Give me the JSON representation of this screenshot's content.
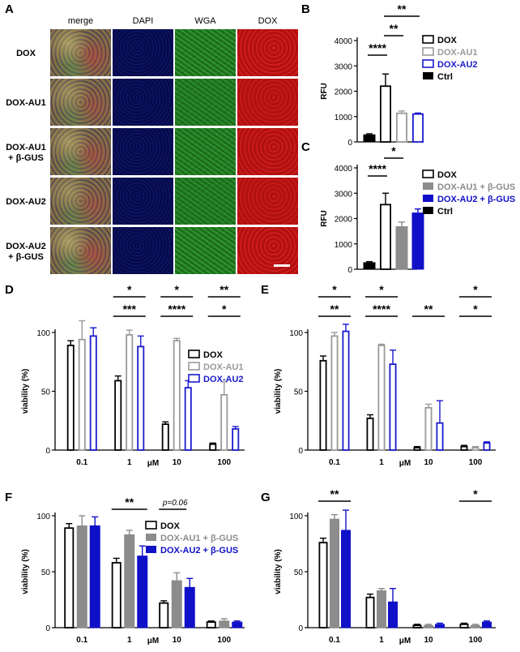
{
  "panel_letters": [
    "A",
    "B",
    "C",
    "D",
    "E",
    "F",
    "G"
  ],
  "panelA": {
    "columns": [
      "merge",
      "DAPI",
      "WGA",
      "DOX"
    ],
    "rows": [
      "DOX",
      "DOX-AU1",
      "DOX-AU1\n+ β-GUS",
      "DOX-AU2",
      "DOX-AU2\n+ β-GUS"
    ],
    "channel_colors": {
      "merge": "#7a6a40",
      "DAPI": "#0a0e5e",
      "WGA": "#1e6a1e",
      "DOX": "#b01010"
    },
    "row_intensity": [
      1.0,
      0.75,
      0.9,
      0.75,
      1.0
    ]
  },
  "chart_data": [
    {
      "panel": "B",
      "type": "bar",
      "ylabel": "RFU",
      "ylim": [
        0,
        4000
      ],
      "yticks": [
        0,
        1000,
        2000,
        3000,
        4000
      ],
      "series": [
        {
          "name": "Ctrl",
          "value": 280,
          "err": 40,
          "style": "solid",
          "color": "#000000"
        },
        {
          "name": "DOX",
          "value": 2200,
          "err": 480,
          "style": "open",
          "color": "#000000"
        },
        {
          "name": "DOX-AU1",
          "value": 1130,
          "err": 90,
          "style": "open",
          "color": "#9a9a9a"
        },
        {
          "name": "DOX-AU2",
          "value": 1100,
          "err": 40,
          "style": "open",
          "color": "#1a1acc"
        }
      ],
      "legend": [
        "DOX",
        "DOX-AU1",
        "DOX-AU2",
        "Ctrl"
      ],
      "significance": [
        {
          "from": 1,
          "to": 3,
          "label": "**",
          "level": 2
        },
        {
          "from": 1,
          "to": 2,
          "label": "**",
          "level": 1
        },
        {
          "from": 0,
          "to": 1,
          "label": "****",
          "level": 0
        }
      ]
    },
    {
      "panel": "C",
      "type": "bar",
      "ylabel": "RFU",
      "ylim": [
        0,
        4000
      ],
      "yticks": [
        0,
        1000,
        2000,
        3000,
        4000
      ],
      "series": [
        {
          "name": "Ctrl",
          "value": 260,
          "err": 40,
          "style": "solid",
          "color": "#000000"
        },
        {
          "name": "DOX",
          "value": 2550,
          "err": 450,
          "style": "open",
          "color": "#000000"
        },
        {
          "name": "DOX-AU1 + β-GUS",
          "value": 1680,
          "err": 180,
          "style": "solid",
          "color": "#8c8c8c"
        },
        {
          "name": "DOX-AU2 + β-GUS",
          "value": 2220,
          "err": 160,
          "style": "solid",
          "color": "#1010c8"
        }
      ],
      "legend": [
        "DOX",
        "DOX-AU1 + β-GUS",
        "DOX-AU2 + β-GUS",
        "Ctrl"
      ],
      "significance": [
        {
          "from": 1,
          "to": 2,
          "label": "*",
          "level": 1
        },
        {
          "from": 0,
          "to": 1,
          "label": "****",
          "level": 0
        }
      ]
    },
    {
      "panel": "D",
      "type": "bar",
      "ylabel": "viability (%)",
      "xunit": "μM",
      "ylim": [
        0,
        100
      ],
      "yticks": [
        0,
        50,
        100
      ],
      "categories": [
        "0.1",
        "1",
        "10",
        "100"
      ],
      "series": [
        {
          "name": "DOX",
          "values": [
            89,
            59,
            22,
            5
          ],
          "errors": [
            4,
            4,
            2,
            1
          ],
          "style": "open",
          "color": "#000000"
        },
        {
          "name": "DOX-AU1",
          "values": [
            94,
            98,
            93,
            47
          ],
          "errors": [
            16,
            4,
            2,
            11
          ],
          "style": "open",
          "color": "#9a9a9a"
        },
        {
          "name": "DOX-AU2",
          "values": [
            97,
            88,
            53,
            18
          ],
          "errors": [
            7,
            9,
            6,
            2
          ],
          "style": "open",
          "color": "#1a1acc"
        }
      ],
      "significance": [
        {
          "cat": 1,
          "label": "*",
          "row": 0
        },
        {
          "cat": 1,
          "label": "***",
          "row": 1
        },
        {
          "cat": 2,
          "label": "*",
          "row": 0
        },
        {
          "cat": 2,
          "label": "****",
          "row": 1
        },
        {
          "cat": 3,
          "label": "**",
          "row": 0
        },
        {
          "cat": 3,
          "label": "*",
          "row": 1
        }
      ]
    },
    {
      "panel": "E",
      "type": "bar",
      "ylabel": "viability (%)",
      "xunit": "μM",
      "ylim": [
        0,
        100
      ],
      "yticks": [
        0,
        50,
        100
      ],
      "categories": [
        "0.1",
        "1",
        "10",
        "100"
      ],
      "series": [
        {
          "name": "DOX",
          "values": [
            76,
            27,
            2,
            3
          ],
          "errors": [
            4,
            3,
            1,
            1
          ],
          "style": "open",
          "color": "#000000"
        },
        {
          "name": "DOX-AU1",
          "values": [
            97,
            89,
            36,
            2
          ],
          "errors": [
            3,
            1,
            3,
            1
          ],
          "style": "open",
          "color": "#9a9a9a"
        },
        {
          "name": "DOX-AU2",
          "values": [
            101,
            73,
            23,
            6
          ],
          "errors": [
            6,
            12,
            19,
            1
          ],
          "style": "open",
          "color": "#1a1acc"
        }
      ],
      "significance": [
        {
          "cat": 0,
          "label": "*",
          "row": 0
        },
        {
          "cat": 0,
          "label": "**",
          "row": 1
        },
        {
          "cat": 1,
          "label": "*",
          "row": 0
        },
        {
          "cat": 1,
          "label": "****",
          "row": 1
        },
        {
          "cat": 2,
          "label": "**",
          "row": 1
        },
        {
          "cat": 3,
          "label": "*",
          "row": 0
        },
        {
          "cat": 3,
          "label": "*",
          "row": 1
        }
      ]
    },
    {
      "panel": "F",
      "type": "bar",
      "ylabel": "viability (%)",
      "xunit": "μM",
      "ylim": [
        0,
        100
      ],
      "yticks": [
        0,
        50,
        100
      ],
      "categories": [
        "0.1",
        "1",
        "10",
        "100"
      ],
      "series": [
        {
          "name": "DOX",
          "values": [
            89,
            58,
            22,
            5
          ],
          "errors": [
            4,
            4,
            2,
            1
          ],
          "style": "open",
          "color": "#000000"
        },
        {
          "name": "DOX-AU1 + β-GUS",
          "values": [
            91,
            83,
            42,
            6
          ],
          "errors": [
            9,
            4,
            7,
            2
          ],
          "style": "solid",
          "color": "#8c8c8c"
        },
        {
          "name": "DOX-AU2 + β-GUS",
          "values": [
            91,
            64,
            36,
            5
          ],
          "errors": [
            8,
            9,
            8,
            1
          ],
          "style": "solid",
          "color": "#1010c8"
        }
      ],
      "significance": [
        {
          "cat": 1,
          "label": "**",
          "row": 0
        },
        {
          "cat": 2,
          "label": "p=0.06",
          "row": 0,
          "italic": true
        }
      ]
    },
    {
      "panel": "G",
      "type": "bar",
      "ylabel": "viability (%)",
      "xunit": "μM",
      "ylim": [
        0,
        100
      ],
      "yticks": [
        0,
        50,
        100
      ],
      "categories": [
        "0.1",
        "1",
        "10",
        "100"
      ],
      "series": [
        {
          "name": "DOX",
          "values": [
            76,
            27,
            2,
            3
          ],
          "errors": [
            4,
            3,
            1,
            1
          ],
          "style": "open",
          "color": "#000000"
        },
        {
          "name": "DOX-AU1 + β-GUS",
          "values": [
            97,
            33,
            2,
            2
          ],
          "errors": [
            4,
            2,
            1,
            1
          ],
          "style": "solid",
          "color": "#8c8c8c"
        },
        {
          "name": "DOX-AU2 + β-GUS",
          "values": [
            87,
            23,
            3,
            5
          ],
          "errors": [
            18,
            12,
            1,
            1
          ],
          "style": "solid",
          "color": "#1010c8"
        }
      ],
      "significance": [
        {
          "cat": 0,
          "label": "**",
          "row": 0
        },
        {
          "cat": 3,
          "label": "*",
          "row": 0
        }
      ]
    }
  ]
}
